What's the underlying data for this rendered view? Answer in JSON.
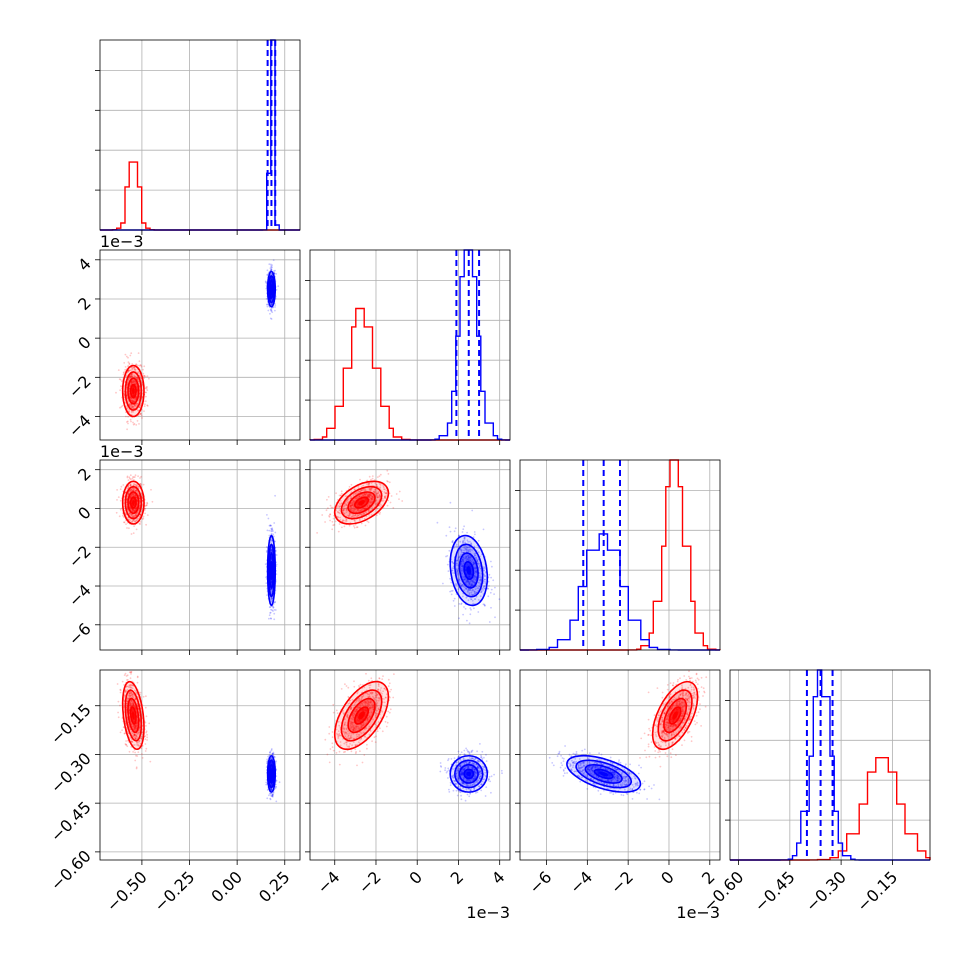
{
  "chart_data": {
    "type": "corner",
    "parameters": [
      {
        "id": "p0",
        "range": [
          -0.72,
          0.33
        ],
        "ticks": [
          -0.5,
          -0.25,
          0.0,
          0.25
        ],
        "tick_labels": [
          "−0.50",
          "−0.25",
          "0.00",
          "0.25"
        ],
        "offset": ""
      },
      {
        "id": "p1",
        "range": [
          -0.0052,
          0.0045
        ],
        "ticks": [
          -0.004,
          -0.002,
          0.0,
          0.002,
          0.004
        ],
        "tick_labels": [
          "−4",
          "−2",
          "0",
          "2",
          "4"
        ],
        "offset": "1e−3"
      },
      {
        "id": "p2",
        "range": [
          -0.0073,
          0.0025
        ],
        "ticks": [
          -0.006,
          -0.004,
          -0.002,
          0.0,
          0.002
        ],
        "tick_labels": [
          "−6",
          "−4",
          "−2",
          "0",
          "2"
        ],
        "offset": "1e−3"
      },
      {
        "id": "p3",
        "range": [
          -0.625,
          -0.04
        ],
        "ticks": [
          -0.6,
          -0.45,
          -0.3,
          -0.15
        ],
        "tick_labels": [
          "−0.60",
          "−0.45",
          "−0.30",
          "−0.15"
        ],
        "offset": ""
      }
    ],
    "series": [
      {
        "color": "#ff0000",
        "mean": [
          -0.545,
          -0.0027,
          0.0003,
          -0.18
        ],
        "std": [
          0.028,
          0.00065,
          0.00055,
          0.052
        ],
        "correlation": {
          "p1_p3": 0.55,
          "p2_p3": 0.55,
          "p1_p2": 0.45,
          "p0_p3": -0.35,
          "p0_p2": 0.0,
          "p0_p1": 0.0
        }
      },
      {
        "color": "#0000ff",
        "mean": [
          0.18,
          0.0025,
          -0.0032,
          -0.36
        ],
        "std": [
          0.01,
          0.00045,
          0.0009,
          0.028
        ],
        "correlation": {
          "p2_p3": -0.55,
          "p1_p2": -0.2,
          "p1_p3": 0.0,
          "p0_p1": 0.0,
          "p0_p2": 0.0,
          "p0_p3": 0.0
        },
        "quantiles": [
          [
            0.16,
            0.18,
            0.2
          ],
          [
            0.0019,
            0.0025,
            0.003
          ],
          [
            -0.0042,
            -0.0032,
            -0.0024
          ],
          [
            -0.4,
            -0.36,
            -0.325
          ]
        ]
      }
    ],
    "histogram_bins": 20,
    "contour_levels": [
      "0.5σ",
      "1σ",
      "1.5σ",
      "2σ"
    ],
    "grid": true,
    "axes_colors": {
      "grid": "#b0b0b0",
      "frame": "#000000",
      "quantile_line": "#0000ff"
    }
  }
}
